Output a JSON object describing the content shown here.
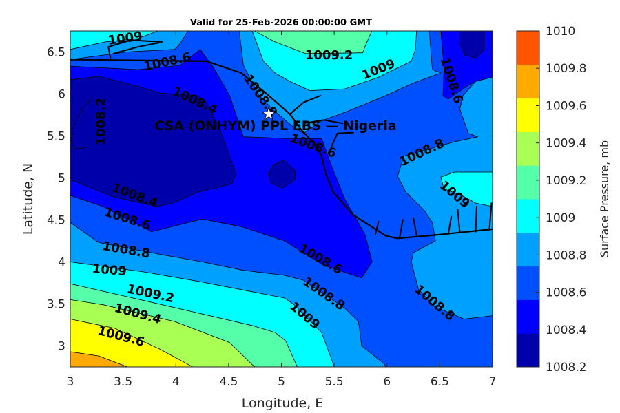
{
  "chart_data": {
    "type": "contour",
    "title": "Valid for 25-Feb-2026 00:00:00 GMT",
    "xlabel": "Longitude, E",
    "ylabel": "Latitude, N",
    "xlim": [
      3,
      7
    ],
    "ylim": [
      2.75,
      6.75
    ],
    "xticks": [
      "3",
      "3.5",
      "4",
      "4.5",
      "5",
      "5.5",
      "6",
      "6.5",
      "7"
    ],
    "xtick_values": [
      3,
      3.5,
      4,
      4.5,
      5,
      5.5,
      6,
      6.5,
      7
    ],
    "yticks": [
      "3",
      "3.5",
      "4",
      "4.5",
      "5",
      "5.5",
      "6",
      "6.5"
    ],
    "ytick_values": [
      3,
      3.5,
      4,
      4.5,
      5,
      5.5,
      6,
      6.5
    ],
    "site_label": "CSA (ONHYM) PPL EBS — Nigeria",
    "site": {
      "lon": 4.88,
      "lat": 5.76
    },
    "colorbar": {
      "label": "Surface Pressure, mb",
      "ticks": [
        "1008.2",
        "1008.4",
        "1008.6",
        "1008.8",
        "1009",
        "1009.2",
        "1009.4",
        "1009.6",
        "1009.8",
        "1010"
      ],
      "colors": [
        "#0000AA",
        "#0000FF",
        "#0050FF",
        "#00A0FF",
        "#00FFFF",
        "#55FFAA",
        "#AAFF55",
        "#FFFF00",
        "#FFAA00",
        "#FF5500"
      ]
    },
    "base_fill": {
      "band": "1008.6-1008.8",
      "color": "#0050FF"
    },
    "regions": [
      {
        "band": "1008.4-1008.6",
        "color": "#0000FF",
        "points": [
          [
            3,
            6.33
          ],
          [
            3.64,
            6.29
          ],
          [
            4.04,
            6.34
          ],
          [
            4.23,
            6.53
          ],
          [
            4.36,
            6.31
          ],
          [
            4.51,
            5.98
          ],
          [
            4.64,
            5.49
          ],
          [
            5.06,
            5.47
          ],
          [
            5.38,
            5.47
          ],
          [
            5.47,
            5.16
          ],
          [
            5.6,
            4.75
          ],
          [
            5.79,
            4.33
          ],
          [
            5.86,
            4.0
          ],
          [
            5.76,
            3.81
          ],
          [
            5.4,
            3.96
          ],
          [
            5.03,
            4.25
          ],
          [
            4.62,
            4.42
          ],
          [
            4.25,
            4.51
          ],
          [
            3.77,
            4.36
          ],
          [
            3.31,
            4.66
          ],
          [
            3,
            4.79
          ]
        ]
      },
      {
        "band": "1008.4-1008.6",
        "color": "#0000FF",
        "points": [
          [
            6.51,
            6.76
          ],
          [
            7,
            6.76
          ],
          [
            7,
            6.2
          ],
          [
            6.79,
            6.12
          ],
          [
            6.58,
            5.94
          ],
          [
            6.53,
            5.98
          ],
          [
            6.54,
            6.31
          ]
        ]
      },
      {
        "band": "1008.2-1008.4",
        "color": "#0000AA",
        "points": [
          [
            3,
            6.17
          ],
          [
            3.27,
            6.21
          ],
          [
            3.64,
            6.09
          ],
          [
            3.85,
            6.01
          ],
          [
            4.21,
            5.98
          ],
          [
            4.29,
            5.9
          ],
          [
            4.42,
            5.57
          ],
          [
            4.51,
            5.26
          ],
          [
            4.57,
            5.05
          ],
          [
            4.53,
            4.93
          ],
          [
            4.21,
            4.83
          ],
          [
            3.97,
            4.7
          ],
          [
            3.82,
            4.66
          ],
          [
            3.42,
            4.77
          ],
          [
            3,
            4.98
          ]
        ]
      },
      {
        "band": "1008.2-1008.4",
        "color": "#0000AA",
        "points": [
          [
            4.93,
            5.16
          ],
          [
            5.02,
            5.21
          ],
          [
            5.13,
            5.09
          ],
          [
            5.13,
            4.98
          ],
          [
            5.01,
            4.88
          ],
          [
            4.89,
            4.95
          ],
          [
            4.88,
            5.07
          ]
        ]
      },
      {
        "band": "1008.2-1008.4",
        "color": "#0000AA",
        "points": [
          [
            6.69,
            6.76
          ],
          [
            6.92,
            6.76
          ],
          [
            6.92,
            6.52
          ],
          [
            6.84,
            6.43
          ],
          [
            6.74,
            6.46
          ],
          [
            6.69,
            6.6
          ]
        ]
      },
      {
        "band": "1008.8-1009",
        "color": "#00A0FF",
        "points": [
          [
            3,
            6.76
          ],
          [
            4.12,
            6.76
          ],
          [
            4.04,
            6.6
          ],
          [
            3.99,
            6.53
          ],
          [
            3.53,
            6.5
          ],
          [
            3,
            6.41
          ]
        ]
      },
      {
        "band": "1009-1009.2",
        "color": "#00FFFF",
        "points": [
          [
            3,
            6.76
          ],
          [
            3.85,
            6.76
          ],
          [
            3.64,
            6.66
          ],
          [
            3.33,
            6.62
          ],
          [
            3,
            6.53
          ]
        ]
      },
      {
        "band": "1008.8-1009",
        "color": "#00A0FF",
        "points": [
          [
            4.6,
            6.76
          ],
          [
            6.4,
            6.76
          ],
          [
            6.43,
            6.29
          ],
          [
            6.51,
            6.25
          ],
          [
            6.25,
            6.13
          ],
          [
            5.99,
            5.98
          ],
          [
            5.6,
            5.78
          ],
          [
            5.38,
            5.68
          ],
          [
            5.21,
            5.53
          ],
          [
            5.11,
            5.61
          ],
          [
            4.94,
            5.79
          ],
          [
            4.79,
            5.98
          ],
          [
            4.64,
            6.34
          ]
        ]
      },
      {
        "band": "1009-1009.2",
        "color": "#00FFFF",
        "points": [
          [
            4.72,
            6.76
          ],
          [
            6.28,
            6.76
          ],
          [
            6.27,
            6.53
          ],
          [
            6.23,
            6.39
          ],
          [
            5.92,
            6.2
          ],
          [
            5.6,
            6.06
          ],
          [
            5.27,
            6.04
          ],
          [
            5.08,
            6.15
          ],
          [
            4.94,
            6.25
          ],
          [
            4.83,
            6.39
          ]
        ]
      },
      {
        "band": "1009.2-1009.4",
        "color": "#55FFAA",
        "points": [
          [
            4.73,
            6.76
          ],
          [
            5.86,
            6.76
          ],
          [
            5.79,
            6.56
          ],
          [
            5.77,
            6.49
          ],
          [
            5.23,
            6.48
          ],
          [
            4.94,
            6.62
          ]
        ]
      },
      {
        "band": "1008.8-1009",
        "color": "#00A0FF",
        "points": [
          [
            7,
            6.2
          ],
          [
            6.84,
            6.15
          ],
          [
            6.72,
            5.98
          ],
          [
            6.69,
            5.82
          ],
          [
            6.77,
            5.53
          ],
          [
            6.86,
            5.49
          ],
          [
            6.64,
            5.43
          ],
          [
            6.16,
            5.26
          ],
          [
            6.1,
            5.02
          ],
          [
            6.18,
            4.83
          ],
          [
            6.35,
            4.62
          ],
          [
            6.43,
            4.47
          ],
          [
            6.46,
            4.25
          ],
          [
            6.25,
            4.11
          ],
          [
            6.23,
            4.0
          ],
          [
            6.3,
            3.67
          ],
          [
            6.45,
            3.47
          ],
          [
            6.73,
            3.32
          ],
          [
            7,
            3.36
          ]
        ]
      },
      {
        "band": "1009-1009.2",
        "color": "#00FFFF",
        "points": [
          [
            6.51,
            5.01
          ],
          [
            6.64,
            5.07
          ],
          [
            7,
            5.07
          ],
          [
            7,
            4.66
          ],
          [
            6.84,
            4.7
          ],
          [
            6.71,
            4.79
          ],
          [
            6.54,
            4.87
          ]
        ]
      },
      {
        "band": "1008.8-1009",
        "color": "#00A0FF",
        "points": [
          [
            3,
            4.47
          ],
          [
            3.27,
            4.23
          ],
          [
            3.85,
            4.09
          ],
          [
            4.25,
            4.0
          ],
          [
            4.64,
            3.9
          ],
          [
            5.03,
            3.84
          ],
          [
            5.21,
            3.78
          ],
          [
            5.6,
            3.45
          ],
          [
            5.73,
            3.29
          ],
          [
            5.76,
            3.0
          ],
          [
            5.97,
            2.79
          ],
          [
            5.99,
            2.75
          ],
          [
            3,
            2.75
          ]
        ]
      },
      {
        "band": "1009-1009.2",
        "color": "#00FFFF",
        "points": [
          [
            3,
            4.0
          ],
          [
            3.7,
            3.88
          ],
          [
            4.25,
            3.76
          ],
          [
            5.03,
            3.57
          ],
          [
            5.12,
            3.49
          ],
          [
            5.38,
            3.16
          ],
          [
            5.49,
            2.79
          ],
          [
            5.5,
            2.75
          ],
          [
            3,
            2.75
          ]
        ]
      },
      {
        "band": "1009.2-1009.4",
        "color": "#55FFAA",
        "points": [
          [
            3,
            3.74
          ],
          [
            3.42,
            3.62
          ],
          [
            4.01,
            3.45
          ],
          [
            4.73,
            3.24
          ],
          [
            4.94,
            3.16
          ],
          [
            5.04,
            3.06
          ],
          [
            5.15,
            2.75
          ],
          [
            3,
            2.75
          ]
        ]
      },
      {
        "band": "1009.4-1009.6",
        "color": "#AAFF55",
        "points": [
          [
            3,
            3.55
          ],
          [
            3.31,
            3.49
          ],
          [
            3.99,
            3.29
          ],
          [
            4.51,
            3.04
          ],
          [
            4.73,
            2.77
          ],
          [
            4.75,
            2.75
          ],
          [
            3,
            2.75
          ]
        ]
      },
      {
        "band": "1009.6-1009.8",
        "color": "#FFFF00",
        "points": [
          [
            3,
            3.32
          ],
          [
            3.42,
            3.21
          ],
          [
            3.85,
            2.96
          ],
          [
            4.16,
            2.75
          ],
          [
            3,
            2.75
          ]
        ]
      },
      {
        "band": "1009.8-1010",
        "color": "#FFAA00",
        "points": [
          [
            3,
            2.93
          ],
          [
            3.27,
            2.88
          ],
          [
            3.54,
            2.75
          ],
          [
            3,
            2.75
          ]
        ]
      }
    ],
    "contour_labels": [
      {
        "text": "1009",
        "lon": 3.52,
        "lat": 6.66
      },
      {
        "text": "1008.6",
        "lon": 3.92,
        "lat": 6.38
      },
      {
        "text": "1009.2",
        "lon": 5.45,
        "lat": 6.46
      },
      {
        "text": "1009",
        "lon": 5.92,
        "lat": 6.29
      },
      {
        "text": "1008.6",
        "lon": 6.61,
        "lat": 6.16
      },
      {
        "text": "1008.4",
        "lon": 4.18,
        "lat": 5.92
      },
      {
        "text": "1008.8",
        "lon": 4.8,
        "lat": 5.98
      },
      {
        "text": "1008.2",
        "lon": 3.29,
        "lat": 5.67
      },
      {
        "text": "1008.6",
        "lon": 5.3,
        "lat": 5.38
      },
      {
        "text": "1008.8",
        "lon": 6.33,
        "lat": 5.3
      },
      {
        "text": "1009",
        "lon": 6.64,
        "lat": 4.8
      },
      {
        "text": "1008.4",
        "lon": 3.61,
        "lat": 4.79
      },
      {
        "text": "1008.6",
        "lon": 3.54,
        "lat": 4.51
      },
      {
        "text": "1008.8",
        "lon": 3.53,
        "lat": 4.14
      },
      {
        "text": "1009",
        "lon": 3.37,
        "lat": 3.9
      },
      {
        "text": "1009.2",
        "lon": 3.76,
        "lat": 3.62
      },
      {
        "text": "1009.4",
        "lon": 3.64,
        "lat": 3.38
      },
      {
        "text": "1009.6",
        "lon": 3.48,
        "lat": 3.11
      },
      {
        "text": "1008.6",
        "lon": 5.37,
        "lat": 4.03
      },
      {
        "text": "1008.8",
        "lon": 5.4,
        "lat": 3.62
      },
      {
        "text": "1009",
        "lon": 5.22,
        "lat": 3.36
      },
      {
        "text": "1008.8",
        "lon": 6.45,
        "lat": 3.51
      }
    ],
    "coastline": [
      [
        [
          3,
          6.41
        ],
        [
          4.29,
          6.39
        ],
        [
          4.62,
          6.25
        ],
        [
          4.88,
          5.98
        ],
        [
          5.08,
          5.76
        ],
        [
          5.19,
          5.57
        ],
        [
          5.32,
          5.4
        ],
        [
          5.38,
          5.26
        ],
        [
          5.42,
          5.05
        ],
        [
          5.49,
          4.83
        ],
        [
          5.68,
          4.56
        ],
        [
          5.99,
          4.31
        ],
        [
          6.1,
          4.28
        ],
        [
          6.45,
          4.32
        ],
        [
          7,
          4.39
        ]
      ],
      [
        [
          3.38,
          6.43
        ],
        [
          3.36,
          6.56
        ],
        [
          3.57,
          6.64
        ],
        [
          3.87,
          6.62
        ]
      ],
      [
        [
          3.41,
          6.48
        ],
        [
          3.64,
          6.56
        ],
        [
          3.84,
          6.61
        ]
      ],
      [
        [
          5.08,
          5.76
        ],
        [
          5.21,
          5.9
        ],
        [
          5.37,
          5.98
        ]
      ],
      [
        [
          5.21,
          5.65
        ],
        [
          5.4,
          5.69
        ],
        [
          5.58,
          5.65
        ]
      ],
      [
        [
          5.47,
          5.36
        ],
        [
          5.53,
          5.53
        ],
        [
          5.68,
          5.54
        ]
      ],
      [
        [
          5.89,
          4.33
        ],
        [
          5.92,
          4.48
        ]
      ],
      [
        [
          6.12,
          4.29
        ],
        [
          6.15,
          4.5
        ]
      ],
      [
        [
          6.28,
          4.32
        ],
        [
          6.25,
          4.52
        ]
      ],
      [
        [
          6.58,
          4.33
        ],
        [
          6.61,
          4.54
        ]
      ],
      [
        [
          6.69,
          4.35
        ],
        [
          6.67,
          4.62
        ]
      ],
      [
        [
          6.84,
          4.36
        ],
        [
          6.85,
          4.66
        ]
      ],
      [
        [
          6.97,
          4.38
        ],
        [
          6.99,
          4.7
        ]
      ]
    ]
  }
}
